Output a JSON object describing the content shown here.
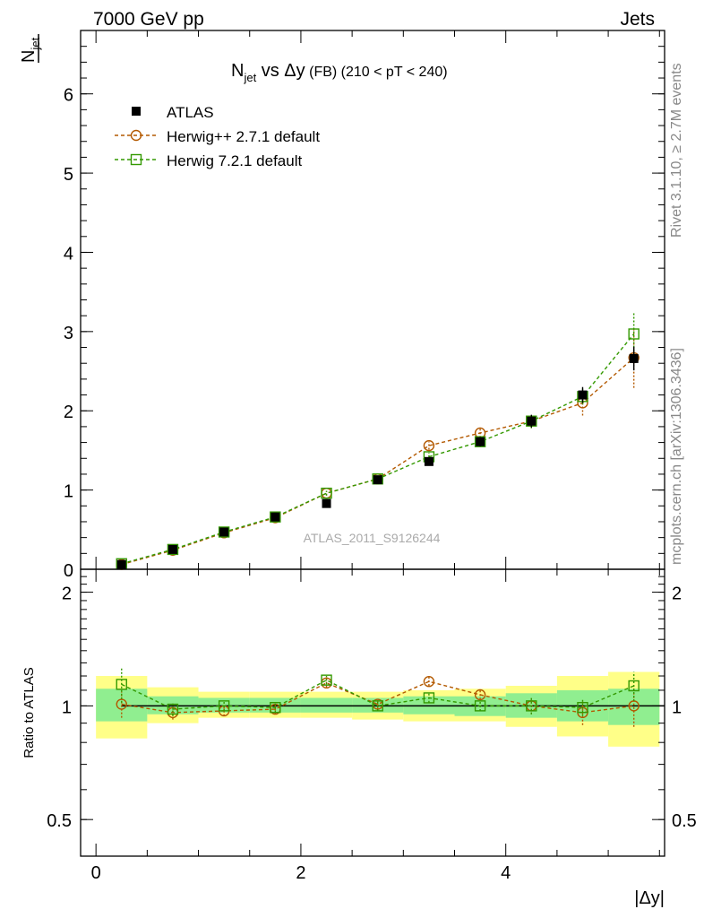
{
  "header": {
    "energy_label": "7000 GeV pp",
    "category_label": "Jets"
  },
  "side_text": {
    "rivet": "Rivet 3.1.10, ≥ 2.7M events",
    "mcplots": "mcplots.cern.ch [arXiv:1306.3436]"
  },
  "chart_data": {
    "type": "scatter",
    "title_main": "N",
    "title_sub": "jet",
    "title_vs": " vs Δy",
    "title_fb": " (FB)",
    "title_range": " (210 < pT < 240)",
    "analysis_tag": "ATLAS_2011_S9126244",
    "ylabel_main": "N",
    "ylabel_sub": "jet",
    "ylabel_ratio": "Ratio to ATLAS",
    "xlabel": "|Δy|",
    "xlim": [
      -0.15,
      5.55
    ],
    "ylim_main": [
      0,
      6.8
    ],
    "ylim_ratio": [
      0.4,
      2.3
    ],
    "ratio_log_scale": true,
    "x_ticks": [
      "0",
      "2",
      "4"
    ],
    "y_ticks_main": [
      "0",
      "1",
      "2",
      "3",
      "4",
      "5",
      "6"
    ],
    "y_ticks_ratio": [
      "0.5",
      "1",
      "2"
    ],
    "legend_position": "top-left",
    "x": [
      0.25,
      0.75,
      1.25,
      1.75,
      2.25,
      2.75,
      3.25,
      3.75,
      4.25,
      4.75,
      5.25
    ],
    "bin_edges": [
      0,
      0.5,
      1.0,
      1.5,
      2.0,
      2.5,
      3.0,
      3.5,
      4.0,
      4.5,
      5.0,
      5.5
    ],
    "series": [
      {
        "name": "ATLAS",
        "color": "#000000",
        "marker": "filled-square",
        "values": [
          0.06,
          0.25,
          0.47,
          0.66,
          0.83,
          1.13,
          1.36,
          1.61,
          1.87,
          2.2,
          2.66
        ],
        "errors": [
          0.005,
          0.01,
          0.02,
          0.03,
          0.04,
          0.04,
          0.05,
          0.06,
          0.08,
          0.1,
          0.15
        ]
      },
      {
        "name": "Herwig++ 2.7.1 default",
        "color": "#b35900",
        "marker": "open-circle",
        "values": [
          0.06,
          0.24,
          0.46,
          0.65,
          0.96,
          1.14,
          1.56,
          1.72,
          1.87,
          2.1,
          2.67
        ],
        "errors": [
          0.004,
          0.01,
          0.015,
          0.02,
          0.03,
          0.04,
          0.05,
          0.06,
          0.09,
          0.16,
          0.38
        ],
        "ratio": [
          1.01,
          0.96,
          0.97,
          0.98,
          1.15,
          1.01,
          1.16,
          1.07,
          1.0,
          0.96,
          1.0
        ],
        "ratio_errors": [
          0.08,
          0.04,
          0.03,
          0.03,
          0.03,
          0.03,
          0.03,
          0.03,
          0.05,
          0.07,
          0.12
        ]
      },
      {
        "name": "Herwig 7.2.1 default",
        "color": "#339900",
        "marker": "open-square",
        "values": [
          0.07,
          0.25,
          0.47,
          0.66,
          0.96,
          1.14,
          1.42,
          1.61,
          1.87,
          2.18,
          2.97
        ],
        "errors": [
          0.004,
          0.01,
          0.015,
          0.02,
          0.03,
          0.04,
          0.05,
          0.06,
          0.09,
          0.1,
          0.26
        ],
        "ratio": [
          1.14,
          0.98,
          1.0,
          0.99,
          1.17,
          1.0,
          1.05,
          1.0,
          1.0,
          0.99,
          1.13
        ],
        "ratio_errors": [
          0.12,
          0.04,
          0.03,
          0.03,
          0.03,
          0.03,
          0.03,
          0.03,
          0.05,
          0.05,
          0.1
        ]
      }
    ],
    "ratio_bands": {
      "inner_color": "#90ee90",
      "outer_color": "#ffff88",
      "inner": [
        [
          0.91,
          1.11
        ],
        [
          0.95,
          1.06
        ],
        [
          0.96,
          1.05
        ],
        [
          0.96,
          1.05
        ],
        [
          0.96,
          1.05
        ],
        [
          0.96,
          1.05
        ],
        [
          0.95,
          1.06
        ],
        [
          0.94,
          1.06
        ],
        [
          0.93,
          1.08
        ],
        [
          0.91,
          1.1
        ],
        [
          0.89,
          1.11
        ]
      ],
      "outer": [
        [
          0.82,
          1.2
        ],
        [
          0.9,
          1.12
        ],
        [
          0.93,
          1.09
        ],
        [
          0.93,
          1.09
        ],
        [
          0.93,
          1.09
        ],
        [
          0.92,
          1.09
        ],
        [
          0.91,
          1.1
        ],
        [
          0.91,
          1.11
        ],
        [
          0.88,
          1.13
        ],
        [
          0.83,
          1.2
        ],
        [
          0.78,
          1.23
        ]
      ]
    }
  }
}
